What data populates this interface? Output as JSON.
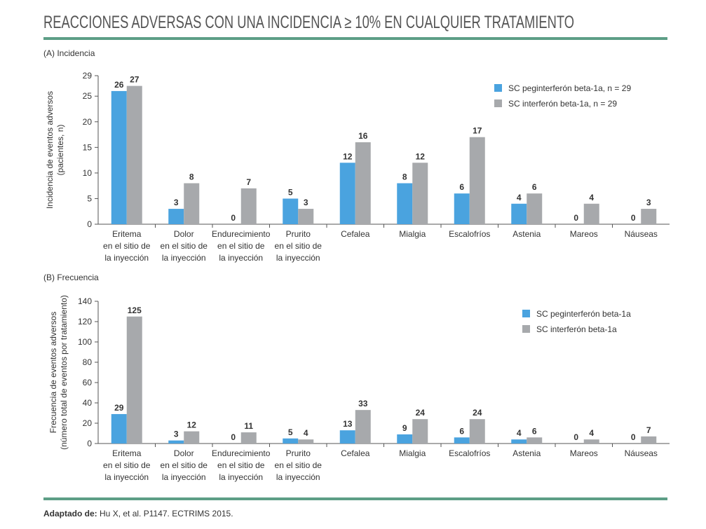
{
  "title": "REACCIONES ADVERSAS CON UNA INCIDENCIA ≥ 10% EN CUALQUIER TRATAMIENTO",
  "chart_data": [
    {
      "type": "bar",
      "title": "(A) Incidencia",
      "ylabel": [
        "Incidencia de eventos adversos",
        "(pacientes, n)"
      ],
      "categories": [
        [
          "Eritema",
          "en el sitio de",
          "la inyección"
        ],
        [
          "Dolor",
          "en el sitio de",
          "la inyección"
        ],
        [
          "Endurecimiento",
          "en el sitio de",
          "la inyección"
        ],
        [
          "Prurito",
          "en el sitio de",
          "la inyección"
        ],
        [
          "Cefalea"
        ],
        [
          "Mialgia"
        ],
        [
          "Escalofríos"
        ],
        [
          "Astenia"
        ],
        [
          "Mareos"
        ],
        [
          "Náuseas"
        ]
      ],
      "series": [
        {
          "name": "SC peginterferón beta-1a, n = 29",
          "color": "#4aa3df",
          "values": [
            26,
            3,
            0,
            5,
            12,
            8,
            6,
            4,
            0,
            0
          ]
        },
        {
          "name": "SC interferón beta-1a, n = 29",
          "color": "#a7a9ac",
          "values": [
            27,
            8,
            7,
            3,
            16,
            12,
            17,
            6,
            4,
            3
          ]
        }
      ],
      "ylim": [
        0,
        29
      ],
      "yticks": [
        0,
        5,
        10,
        15,
        20,
        25,
        29
      ],
      "legend": "upper right"
    },
    {
      "type": "bar",
      "title": "(B) Frecuencia",
      "ylabel": [
        "Frecuencia de eventos adversos",
        "(número total de eventos por tratamiento)"
      ],
      "categories": [
        [
          "Eritema",
          "en el sitio de",
          "la inyección"
        ],
        [
          "Dolor",
          "en el sitio de",
          "la inyección"
        ],
        [
          "Endurecimiento",
          "en el sitio de",
          "la inyección"
        ],
        [
          "Prurito",
          "en el sitio de",
          "la inyección"
        ],
        [
          "Cefalea"
        ],
        [
          "Mialgia"
        ],
        [
          "Escalofríos"
        ],
        [
          "Astenia"
        ],
        [
          "Mareos"
        ],
        [
          "Náuseas"
        ]
      ],
      "series": [
        {
          "name": "SC peginterferón beta-1a",
          "color": "#4aa3df",
          "values": [
            29,
            3,
            0,
            5,
            13,
            9,
            6,
            4,
            0,
            0
          ]
        },
        {
          "name": "SC interferón beta-1a",
          "color": "#a7a9ac",
          "values": [
            125,
            12,
            11,
            4,
            33,
            24,
            24,
            6,
            4,
            7
          ]
        }
      ],
      "ylim": [
        0,
        140
      ],
      "yticks": [
        0,
        20,
        40,
        60,
        80,
        100,
        120,
        140
      ],
      "legend": "upper right"
    }
  ],
  "footer": {
    "label": "Adaptado de:",
    "text": "Hu X, et al. P1147. ECTRIMS 2015."
  }
}
